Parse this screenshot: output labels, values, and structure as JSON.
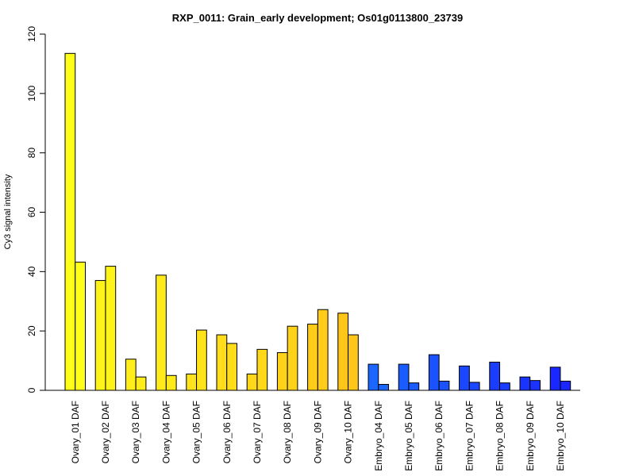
{
  "chart_data": {
    "type": "bar",
    "title": "RXP_0011: Grain_early development; Os01g0113800_23739",
    "xlabel": "",
    "ylabel": "Cy3 signal intensity",
    "ylim": [
      0,
      120
    ],
    "yticks": [
      0,
      20,
      40,
      60,
      80,
      100,
      120
    ],
    "grid": false,
    "legend": "none",
    "categories": [
      "Ovary_01 DAF",
      "Ovary_02 DAF",
      "Ovary_03 DAF",
      "Ovary_04 DAF",
      "Ovary_05 DAF",
      "Ovary_06 DAF",
      "Ovary_07 DAF",
      "Ovary_08 DAF",
      "Ovary_09 DAF",
      "Ovary_10 DAF",
      "Embryo_04 DAF",
      "Embryo_05 DAF",
      "Embryo_06 DAF",
      "Embryo_07 DAF",
      "Embryo_08 DAF",
      "Embryo_09 DAF",
      "Embryo_10 DAF"
    ],
    "colors": [
      "#FFFF1A",
      "#FFF41A",
      "#FFEE1A",
      "#FFEA1A",
      "#FFE31A",
      "#FFDD1A",
      "#FFD81A",
      "#FFD21A",
      "#FFCC1A",
      "#FFC61A",
      "#1A66FF",
      "#1A5CFF",
      "#1A52FF",
      "#1A47FF",
      "#1A3DFF",
      "#1A33FF",
      "#1A28FF"
    ],
    "series": [
      {
        "values": [
          113.5,
          37.0,
          10.5,
          38.8,
          5.5,
          18.7,
          5.5,
          12.7,
          22.3,
          26.0,
          8.8,
          8.8,
          12.0,
          8.2,
          9.5,
          4.5,
          7.8
        ]
      },
      {
        "values": [
          43.2,
          41.8,
          4.5,
          5.0,
          20.3,
          15.8,
          13.8,
          21.6,
          27.2,
          18.7,
          2.0,
          2.5,
          3.1,
          2.7,
          2.5,
          3.3,
          3.1
        ]
      }
    ]
  }
}
